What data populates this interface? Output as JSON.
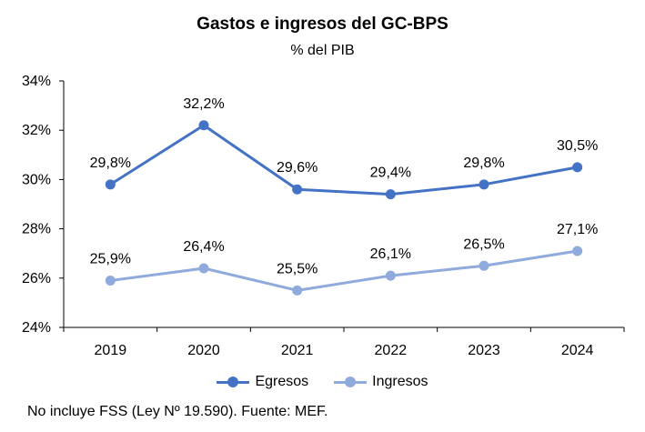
{
  "chart_data": {
    "type": "line",
    "title": "Gastos e ingresos del GC-BPS",
    "subtitle": "% del PIB",
    "categories": [
      "2019",
      "2020",
      "2021",
      "2022",
      "2023",
      "2024"
    ],
    "series": [
      {
        "name": "Egresos",
        "color": "#4472c4",
        "values": [
          29.8,
          32.2,
          29.6,
          29.4,
          29.8,
          30.5
        ],
        "labels": [
          "29,8%",
          "32,2%",
          "29,6%",
          "29,4%",
          "29,8%",
          "30,5%"
        ]
      },
      {
        "name": "Ingresos",
        "color": "#8faadc",
        "values": [
          25.9,
          26.4,
          25.5,
          26.1,
          26.5,
          27.1
        ],
        "labels": [
          "25,9%",
          "26,4%",
          "25,5%",
          "26,1%",
          "26,5%",
          "27,1%"
        ]
      }
    ],
    "yticks": [
      24,
      26,
      28,
      30,
      32,
      34
    ],
    "ytick_labels": [
      "24%",
      "26%",
      "28%",
      "30%",
      "32%",
      "34%"
    ],
    "ylim": [
      24,
      34
    ],
    "grid": false,
    "legend": "bottom"
  },
  "footnote": "No incluye FSS (Ley Nº 19.590). Fuente: MEF."
}
